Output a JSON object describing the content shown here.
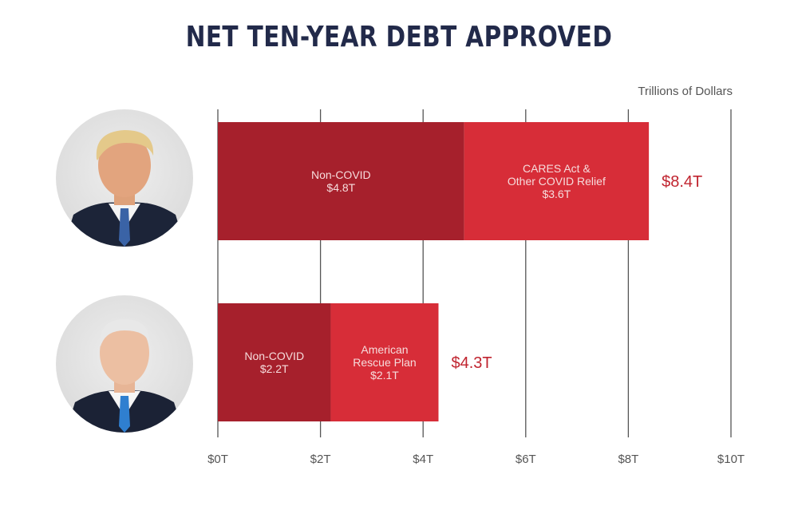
{
  "chart_data": {
    "type": "bar",
    "orientation": "horizontal",
    "stacked": true,
    "title": "NET TEN-YEAR DEBT APPROVED",
    "unit_label": "Trillions of Dollars",
    "xlim": [
      0,
      10
    ],
    "ticks": [
      0,
      2,
      4,
      6,
      8,
      10
    ],
    "tick_labels": [
      "$0T",
      "$2T",
      "$4T",
      "$6T",
      "$8T",
      "$10T"
    ],
    "grid": true,
    "rows": [
      {
        "portrait": "trump-portrait",
        "total_label": "$8.4T",
        "segments": [
          {
            "lines": [
              "Non-COVID",
              "$4.8T"
            ],
            "value": 4.8,
            "color": "#a6202c"
          },
          {
            "lines": [
              "CARES Act &",
              "Other COVID Relief",
              "$3.6T"
            ],
            "value": 3.6,
            "color": "#d72d38"
          }
        ]
      },
      {
        "portrait": "biden-portrait",
        "total_label": "$4.3T",
        "segments": [
          {
            "lines": [
              "Non-COVID",
              "$2.2T"
            ],
            "value": 2.2,
            "color": "#a6202c"
          },
          {
            "lines": [
              "American",
              "Rescue Plan",
              "$2.1T"
            ],
            "value": 2.1,
            "color": "#d72d38"
          }
        ]
      }
    ]
  },
  "colors": {
    "title": "#222a4a",
    "total_label": "#c0242f",
    "grid": "#555555",
    "segment_text": "#f6dcdc"
  }
}
